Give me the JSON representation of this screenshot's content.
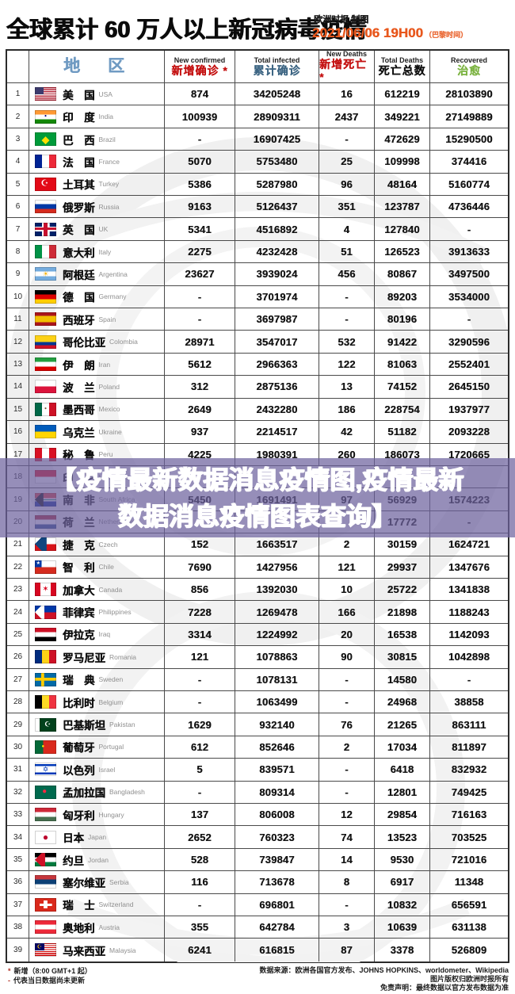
{
  "header": {
    "title": "全球累计 60 万人以上新冠病毒疫情",
    "credit": "欧洲时报 制图",
    "datetime": "2021/06/06 19H00",
    "timezone": "（巴黎时间）",
    "datetime_color": "#e8571c"
  },
  "watermark": {
    "line1": "【疫情最新数据消息疫情图,疫情最新",
    "line2": "数据消息疫情图表查询】",
    "bg": "rgba(110,99,158,0.72)",
    "text_color": "#ffffff"
  },
  "table": {
    "region_header": "地　区",
    "region_header_color": "#6f9ac2",
    "cols": [
      {
        "en": "New confirmed",
        "zh": "新增确诊 *",
        "color": "#c41111"
      },
      {
        "en": "Total infected",
        "zh": "累计确诊",
        "color": "#3d6583"
      },
      {
        "en": "New Deaths",
        "zh": "新增死亡 *",
        "color": "#c41111"
      },
      {
        "en": "Total Deaths",
        "zh": "死亡总数",
        "color": "#101010"
      },
      {
        "en": "Recovered",
        "zh": "治愈",
        "color": "#7cb342"
      }
    ]
  },
  "chart_data": {
    "type": "table",
    "title": "全球累计 60 万人以上新冠病毒疫情",
    "as_of": "2021/06/06 19H00（巴黎时间）",
    "columns": [
      "排名",
      "地区",
      "新增确诊",
      "累计确诊",
      "新增死亡",
      "死亡总数",
      "治愈"
    ],
    "rows": [
      {
        "rank": "1",
        "zh": "美　国",
        "en": "USA",
        "new_confirmed": "874",
        "total_infected": "34205248",
        "new_deaths": "16",
        "total_deaths": "612219",
        "recovered": "28103890",
        "flag_bg": "linear-gradient(#3C3B6E,#3C3B6E) left top/42% 53% no-repeat, repeating-linear-gradient(#B22234 0 7.7%, #fff 7.7% 15.4%)"
      },
      {
        "rank": "2",
        "zh": "印　度",
        "en": "India",
        "new_confirmed": "100939",
        "total_infected": "28909311",
        "new_deaths": "2437",
        "total_deaths": "349221",
        "recovered": "27149889",
        "flag_bg": "linear-gradient(#FF9933 33%,#fff 33% 67%,#138808 67%)",
        "flag_emblem": {
          "char": "●",
          "color": "#000080",
          "size": 5
        }
      },
      {
        "rank": "3",
        "zh": "巴　西",
        "en": "Brazil",
        "new_confirmed": "-",
        "total_infected": "16907425",
        "new_deaths": "-",
        "total_deaths": "472629",
        "recovered": "15290500",
        "flag_bg": "#009B3A",
        "flag_emblem": {
          "char": "◆",
          "color": "#FEDF00",
          "size": 13
        }
      },
      {
        "rank": "4",
        "zh": "法　国",
        "en": "France",
        "new_confirmed": "5070",
        "total_infected": "5753480",
        "new_deaths": "25",
        "total_deaths": "109998",
        "recovered": "374416",
        "flag_bg": "linear-gradient(90deg,#002395 33%,#fff 33% 67%,#ED2939 67%)"
      },
      {
        "rank": "5",
        "zh": "土耳其",
        "en": "Turkey",
        "new_confirmed": "5386",
        "total_infected": "5287980",
        "new_deaths": "96",
        "total_deaths": "48164",
        "recovered": "5160774",
        "flag_bg": "#E30A17",
        "flag_emblem": {
          "char": "☪",
          "color": "#ffffff",
          "size": 11,
          "x": 46
        }
      },
      {
        "rank": "6",
        "zh": "俄罗斯",
        "en": "Russia",
        "new_confirmed": "9163",
        "total_infected": "5126437",
        "new_deaths": "351",
        "total_deaths": "123787",
        "recovered": "4736446",
        "flag_bg": "linear-gradient(#fff 33%,#0039A6 33% 67%,#D52B1E 67%)"
      },
      {
        "rank": "7",
        "zh": "英　国",
        "en": "UK",
        "new_confirmed": "5341",
        "total_infected": "4516892",
        "new_deaths": "4",
        "total_deaths": "127840",
        "recovered": "-",
        "flag_bg": "linear-gradient(#C8102E,#C8102E) center/100% 20% no-repeat, linear-gradient(#C8102E,#C8102E) center/20% 100% no-repeat, linear-gradient(#fff,#fff) center/100% 36% no-repeat, linear-gradient(#fff,#fff) center/36% 100% no-repeat, #012169"
      },
      {
        "rank": "8",
        "zh": "意大利",
        "en": "Italy",
        "new_confirmed": "2275",
        "total_infected": "4232428",
        "new_deaths": "51",
        "total_deaths": "126523",
        "recovered": "3913633",
        "flag_bg": "linear-gradient(90deg,#009246 33%,#fff 33% 67%,#CE2B37 67%)"
      },
      {
        "rank": "9",
        "zh": "阿根廷",
        "en": "Argentina",
        "new_confirmed": "23627",
        "total_infected": "3939024",
        "new_deaths": "456",
        "total_deaths": "80867",
        "recovered": "3497500",
        "flag_bg": "linear-gradient(#74ACDF 33%,#fff 33% 67%,#74ACDF 67%)",
        "flag_emblem": {
          "char": "☀",
          "color": "#F6B40E",
          "size": 9
        }
      },
      {
        "rank": "10",
        "zh": "德　国",
        "en": "Germany",
        "new_confirmed": "-",
        "total_infected": "3701974",
        "new_deaths": "-",
        "total_deaths": "89203",
        "recovered": "3534000",
        "flag_bg": "linear-gradient(#000 33%,#DD0000 33% 67%,#FFCE00 67%)"
      },
      {
        "rank": "11",
        "zh": "西班牙",
        "en": "Spain",
        "new_confirmed": "-",
        "total_infected": "3697987",
        "new_deaths": "-",
        "total_deaths": "80196",
        "recovered": "-",
        "flag_bg": "linear-gradient(#AA151B 25%,#F1BF00 25% 75%,#AA151B 75%)"
      },
      {
        "rank": "12",
        "zh": "哥伦比亚",
        "en": "Colombia",
        "new_confirmed": "28971",
        "total_infected": "3547017",
        "new_deaths": "532",
        "total_deaths": "91422",
        "recovered": "3290596",
        "flag_bg": "linear-gradient(#FCD116 50%,#003893 50% 75%,#CE1126 75%)"
      },
      {
        "rank": "13",
        "zh": "伊　朗",
        "en": "Iran",
        "new_confirmed": "5612",
        "total_infected": "2966363",
        "new_deaths": "122",
        "total_deaths": "81063",
        "recovered": "2552401",
        "flag_bg": "linear-gradient(#239F40 33%,#fff 33% 67%,#DA0000 67%)"
      },
      {
        "rank": "14",
        "zh": "波　兰",
        "en": "Poland",
        "new_confirmed": "312",
        "total_infected": "2875136",
        "new_deaths": "13",
        "total_deaths": "74152",
        "recovered": "2645150",
        "flag_bg": "linear-gradient(#fff 50%,#DC143C 50%)"
      },
      {
        "rank": "15",
        "zh": "墨西哥",
        "en": "Mexico",
        "new_confirmed": "2649",
        "total_infected": "2432280",
        "new_deaths": "186",
        "total_deaths": "228754",
        "recovered": "1937977",
        "flag_bg": "linear-gradient(90deg,#006847 33%,#fff 33% 67%,#CE1126 67%)",
        "flag_emblem": {
          "char": "●",
          "color": "#7a5a3a",
          "size": 5
        }
      },
      {
        "rank": "16",
        "zh": "乌克兰",
        "en": "Ukraine",
        "new_confirmed": "937",
        "total_infected": "2214517",
        "new_deaths": "42",
        "total_deaths": "51182",
        "recovered": "2093228",
        "flag_bg": "linear-gradient(#005BBB 50%,#FFD500 50%)"
      },
      {
        "rank": "17",
        "zh": "秘　鲁",
        "en": "Peru",
        "new_confirmed": "4225",
        "total_infected": "1980391",
        "new_deaths": "260",
        "total_deaths": "186073",
        "recovered": "1720665",
        "flag_bg": "linear-gradient(90deg,#D91023 33%,#fff 33% 67%,#D91023 67%)"
      },
      {
        "rank": "18",
        "zh": "印　尼",
        "en": "Indonesia",
        "new_confirmed": "",
        "total_infected": "",
        "new_deaths": "",
        "total_deaths": "",
        "recovered": "",
        "flag_bg": "linear-gradient(#E70011 50%,#fff 50%)"
      },
      {
        "rank": "19",
        "zh": "南　非",
        "en": "South Africa",
        "new_confirmed": "5450",
        "total_infected": "1691491",
        "new_deaths": "97",
        "total_deaths": "56929",
        "recovered": "1574223",
        "flag_bg": "conic-gradient(from 45deg at 0% 50%, #000 0 90deg, transparent 90deg) left center/40% 100% no-repeat, linear-gradient(#DE3831 38%,#fff 38% 46%,#007A4D 46% 54%,#fff 54% 62%,#002395 62%)"
      },
      {
        "rank": "20",
        "zh": "荷　兰",
        "en": "Netherlands",
        "new_confirmed": "",
        "total_infected": "",
        "new_deaths": "",
        "total_deaths": "17772",
        "recovered": "-",
        "flag_bg": "linear-gradient(#AE1C28 33%,#fff 33% 67%,#21468B 67%)"
      },
      {
        "rank": "21",
        "zh": "捷　克",
        "en": "Czech",
        "new_confirmed": "152",
        "total_infected": "1663517",
        "new_deaths": "2",
        "total_deaths": "30159",
        "recovered": "1624721",
        "flag_bg": "conic-gradient(from 45deg at 0% 50%, #11457E 0 90deg, transparent 90deg) left center/55% 100% no-repeat, linear-gradient(#fff 50%,#D7141A 50%)"
      },
      {
        "rank": "22",
        "zh": "智　利",
        "en": "Chile",
        "new_confirmed": "7690",
        "total_infected": "1427956",
        "new_deaths": "121",
        "total_deaths": "29937",
        "recovered": "1347676",
        "flag_bg": "linear-gradient(90deg,#0039A6 32%,#fff 32%) left top/100% 50% no-repeat, #D52B1E",
        "flag_emblem": {
          "char": "★",
          "color": "#ffffff",
          "size": 6,
          "x": 16,
          "y": 25
        }
      },
      {
        "rank": "23",
        "zh": "加拿大",
        "en": "Canada",
        "new_confirmed": "856",
        "total_infected": "1392030",
        "new_deaths": "10",
        "total_deaths": "25722",
        "recovered": "1341838",
        "flag_bg": "linear-gradient(90deg,#D80621 26%,#fff 26% 74%,#D80621 74%)",
        "flag_emblem": {
          "char": "✶",
          "color": "#D80621",
          "size": 10
        }
      },
      {
        "rank": "24",
        "zh": "菲律宾",
        "en": "Philippines",
        "new_confirmed": "7228",
        "total_infected": "1269478",
        "new_deaths": "166",
        "total_deaths": "21898",
        "recovered": "1188243",
        "flag_bg": "conic-gradient(from 45deg at 0% 50%, #ffffff 0 90deg, transparent 90deg) left center/45% 100% no-repeat, linear-gradient(#0038A8 50%,#CE1126 50%)"
      },
      {
        "rank": "25",
        "zh": "伊拉克",
        "en": "Iraq",
        "new_confirmed": "3314",
        "total_infected": "1224992",
        "new_deaths": "20",
        "total_deaths": "16538",
        "recovered": "1142093",
        "flag_bg": "linear-gradient(#CE1126 33%,#fff 33% 67%,#000 67%)"
      },
      {
        "rank": "26",
        "zh": "罗马尼亚",
        "en": "Romania",
        "new_confirmed": "121",
        "total_infected": "1078863",
        "new_deaths": "90",
        "total_deaths": "30815",
        "recovered": "1042898",
        "flag_bg": "linear-gradient(90deg,#002B7F 33%,#FCD116 33% 67%,#CE1126 67%)"
      },
      {
        "rank": "27",
        "zh": "瑞　典",
        "en": "Sweden",
        "new_confirmed": "-",
        "total_infected": "1078131",
        "new_deaths": "-",
        "total_deaths": "14580",
        "recovered": "-",
        "flag_bg": "linear-gradient(#FECC00,#FECC00) 35% 0/14% 100% no-repeat, linear-gradient(#FECC00,#FECC00) 0 50%/100% 22% no-repeat, #006AA7"
      },
      {
        "rank": "28",
        "zh": "比利时",
        "en": "Belgium",
        "new_confirmed": "-",
        "total_infected": "1063499",
        "new_deaths": "-",
        "total_deaths": "24968",
        "recovered": "38858",
        "flag_bg": "linear-gradient(90deg,#000 33%,#FDDA24 33% 67%,#EF3340 67%)"
      },
      {
        "rank": "29",
        "zh": "巴基斯坦",
        "en": "Pakistan",
        "new_confirmed": "1629",
        "total_infected": "932140",
        "new_deaths": "76",
        "total_deaths": "21265",
        "recovered": "863111",
        "flag_bg": "linear-gradient(90deg,#fff 22%,#01411C 22%)",
        "flag_emblem": {
          "char": "☪",
          "color": "#ffffff",
          "size": 9,
          "x": 60
        }
      },
      {
        "rank": "30",
        "zh": "葡萄牙",
        "en": "Portugal",
        "new_confirmed": "612",
        "total_infected": "852646",
        "new_deaths": "2",
        "total_deaths": "17034",
        "recovered": "811897",
        "flag_bg": "linear-gradient(90deg,#046A38 38%,#DA291C 38%)",
        "flag_emblem": {
          "char": "●",
          "color": "#FFE900",
          "size": 6,
          "x": 38
        }
      },
      {
        "rank": "31",
        "zh": "以色列",
        "en": "Israel",
        "new_confirmed": "5",
        "total_infected": "839571",
        "new_deaths": "-",
        "total_deaths": "6418",
        "recovered": "832932",
        "flag_bg": "linear-gradient(#fff 12%,#0038B8 12% 26%,#fff 26% 74%,#0038B8 74% 88%,#fff 88%)",
        "flag_emblem": {
          "char": "✡",
          "color": "#0038B8",
          "size": 9
        }
      },
      {
        "rank": "32",
        "zh": "孟加拉国",
        "en": "Bangladesh",
        "new_confirmed": "-",
        "total_infected": "809314",
        "new_deaths": "-",
        "total_deaths": "12801",
        "recovered": "749425",
        "flag_bg": "#006A4E",
        "flag_emblem": {
          "char": "●",
          "color": "#F42A41",
          "size": 10,
          "x": 45
        }
      },
      {
        "rank": "33",
        "zh": "匈牙利",
        "en": "Hungary",
        "new_confirmed": "137",
        "total_infected": "806008",
        "new_deaths": "12",
        "total_deaths": "29854",
        "recovered": "716163",
        "flag_bg": "linear-gradient(#CE2939 33%,#fff 33% 67%,#477050 67%)"
      },
      {
        "rank": "34",
        "zh": "日本",
        "en": "Japan",
        "new_confirmed": "2652",
        "total_infected": "760323",
        "new_deaths": "74",
        "total_deaths": "13523",
        "recovered": "703525",
        "flag_bg": "#ffffff",
        "flag_emblem": {
          "char": "●",
          "color": "#BC002D",
          "size": 12
        }
      },
      {
        "rank": "35",
        "zh": "约旦",
        "en": "Jordan",
        "new_confirmed": "528",
        "total_infected": "739847",
        "new_deaths": "14",
        "total_deaths": "9530",
        "recovered": "721016",
        "flag_bg": "conic-gradient(from 45deg at 0% 50%, #CE1126 0 90deg, transparent 90deg) left center/48% 100% no-repeat, linear-gradient(#000 33%,#fff 33% 67%,#007A3D 67%)"
      },
      {
        "rank": "36",
        "zh": "塞尔维亚",
        "en": "Serbia",
        "new_confirmed": "116",
        "total_infected": "713678",
        "new_deaths": "8",
        "total_deaths": "6917",
        "recovered": "11348",
        "flag_bg": "linear-gradient(#C6363C 33%,#0C4076 33% 67%,#fff 67%)"
      },
      {
        "rank": "37",
        "zh": "瑞　士",
        "en": "Switzerland",
        "new_confirmed": "-",
        "total_infected": "696801",
        "new_deaths": "-",
        "total_deaths": "10832",
        "recovered": "656591",
        "flag_bg": "linear-gradient(#fff,#fff) center/58% 18% no-repeat, linear-gradient(#fff,#fff) center/18% 58% no-repeat, #DA291C"
      },
      {
        "rank": "38",
        "zh": "奥地利",
        "en": "Austria",
        "new_confirmed": "355",
        "total_infected": "642784",
        "new_deaths": "3",
        "total_deaths": "10639",
        "recovered": "631138",
        "flag_bg": "linear-gradient(#ED2939 33%,#fff 33% 67%,#ED2939 67%)"
      },
      {
        "rank": "39",
        "zh": "马来西亚",
        "en": "Malaysia",
        "new_confirmed": "6241",
        "total_infected": "616815",
        "new_deaths": "87",
        "total_deaths": "3378",
        "recovered": "526809",
        "flag_bg": "linear-gradient(#010066,#010066) left top/45% 55% no-repeat, repeating-linear-gradient(#CC0001 0 7.2%, #fff 7.2% 14.4%)",
        "flag_emblem": {
          "char": "☪",
          "color": "#FFCC00",
          "size": 7,
          "x": 22,
          "y": 27
        }
      }
    ]
  },
  "footer": {
    "note1_mark": "*",
    "note1_text": "新增（8:00 GMT+1 起）",
    "note2_mark": "-",
    "note2_text": "代表当日数据尚未更新",
    "source_line1": "数据来源：欧洲各国官方发布、JOHNS HOPKINS、worldometer、Wikipedia",
    "source_line2": "图片版权归欧洲时报所有",
    "source_line3": "免责声明：最终数据以官方发布数据为准"
  }
}
